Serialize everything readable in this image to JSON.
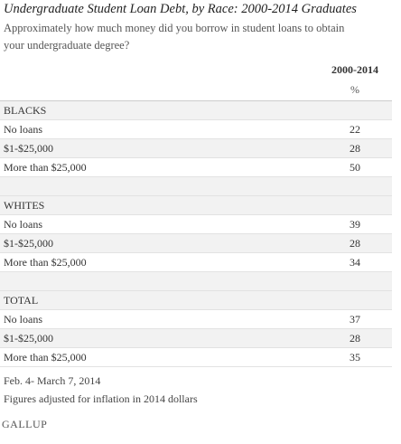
{
  "title": "Undergraduate Student Loan Debt, by Race: 2000-2014 Graduates",
  "subtitle": "Approximately how much money did you borrow in student loans to obtain your undergraduate degree?",
  "table": {
    "column_header": "2000-2014",
    "unit": "%",
    "groups": [
      {
        "name": "BLACKS",
        "rows": [
          {
            "label": "No loans",
            "value": 22
          },
          {
            "label": "$1-$25,000",
            "value": 28
          },
          {
            "label": "More than $25,000",
            "value": 50
          }
        ]
      },
      {
        "name": "WHITES",
        "rows": [
          {
            "label": "No loans",
            "value": 39
          },
          {
            "label": "$1-$25,000",
            "value": 28
          },
          {
            "label": "More than $25,000",
            "value": 34
          }
        ]
      },
      {
        "name": "TOTAL",
        "rows": [
          {
            "label": "No loans",
            "value": 37
          },
          {
            "label": "$1-$25,000",
            "value": 28
          },
          {
            "label": "More than $25,000",
            "value": 35
          }
        ]
      }
    ]
  },
  "notes": [
    "Feb. 4- March 7, 2014",
    "Figures adjusted for inflation in 2014 dollars"
  ],
  "source": "GALLUP"
}
